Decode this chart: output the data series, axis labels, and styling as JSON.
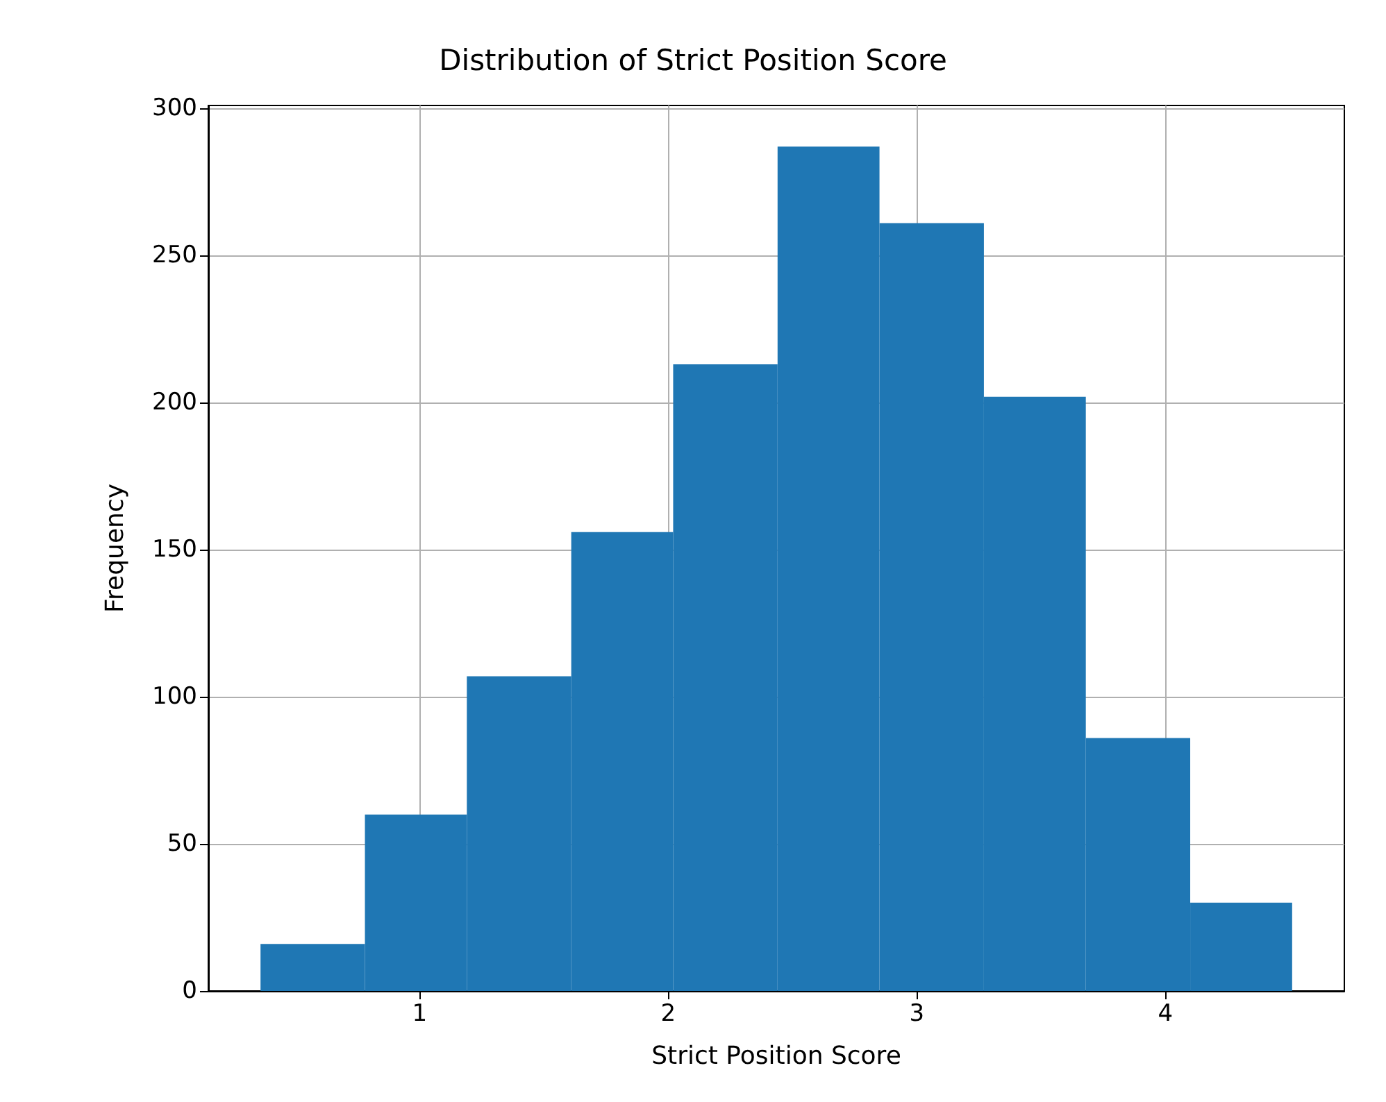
{
  "chart_data": {
    "type": "histogram",
    "title": "Distribution of Strict Position Score",
    "xlabel": "Strict Position Score",
    "ylabel": "Frequency",
    "bins": [
      0.36,
      0.78,
      1.19,
      1.61,
      2.02,
      2.44,
      2.85,
      3.27,
      3.68,
      4.1,
      4.51
    ],
    "values": [
      16,
      60,
      107,
      156,
      213,
      287,
      261,
      202,
      86,
      30
    ],
    "color": "#1f77b4",
    "xlim": [
      0.15,
      4.72
    ],
    "xticks": [
      1,
      2,
      3,
      4
    ],
    "ylim": [
      0,
      301
    ],
    "yticks": [
      0,
      50,
      100,
      150,
      200,
      250,
      300
    ],
    "grid": true,
    "legend": false
  }
}
